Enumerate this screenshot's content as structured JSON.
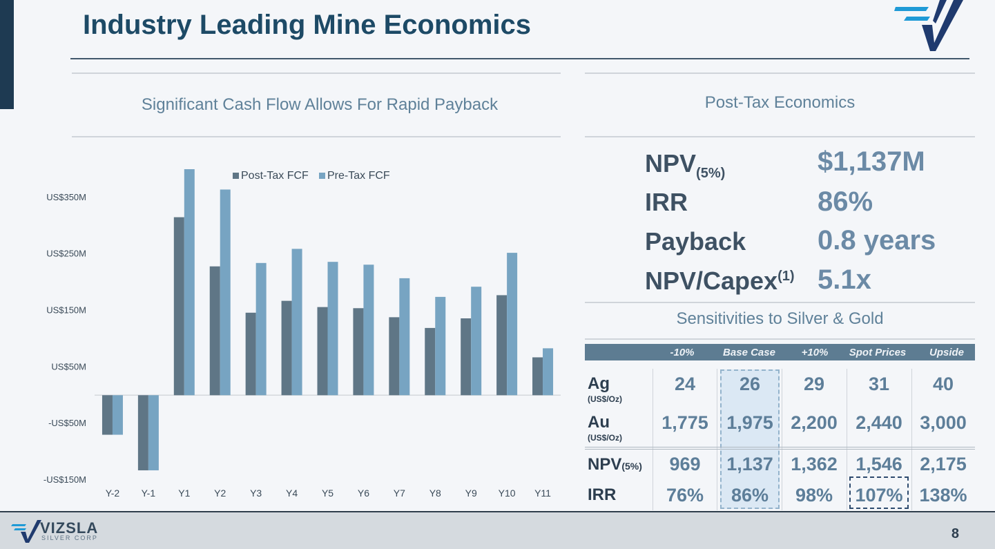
{
  "page": {
    "title": "Industry Leading Mine Economics",
    "page_number": "8"
  },
  "brand": {
    "name": "VIZSLA",
    "sub": "SILVER CORP"
  },
  "left_panel": {
    "subtitle": "Significant Cash Flow Allows For Rapid Payback"
  },
  "right_panel": {
    "subtitle": "Post-Tax Economics",
    "metrics": [
      {
        "label": "NPV",
        "label_suffix": "(5%)",
        "suffix_type": "sub",
        "value": "$1,137M"
      },
      {
        "label": "IRR",
        "label_suffix": "",
        "suffix_type": "",
        "value": "86%"
      },
      {
        "label": "Payback",
        "label_suffix": "",
        "suffix_type": "",
        "value": "0.8 years"
      },
      {
        "label": "NPV/Capex",
        "label_suffix": "(1)",
        "suffix_type": "sup",
        "value": "5.1x"
      }
    ],
    "sensitivities": {
      "title": "Sensitivities to Silver & Gold",
      "columns": [
        "-10%",
        "Base Case",
        "+10%",
        "Spot Prices",
        "Upside"
      ],
      "rows": [
        {
          "label": "Ag",
          "unit": "(US$/Oz)",
          "values": [
            "24",
            "26",
            "29",
            "31",
            "40"
          ]
        },
        {
          "label": "Au",
          "unit": "(US$/Oz)",
          "values": [
            "1,775",
            "1,975",
            "2,200",
            "2,440",
            "3,000"
          ]
        },
        {
          "label": "NPV",
          "label_suffix": "(5%)",
          "values": [
            "969",
            "1,137",
            "1,362",
            "1,546",
            "2,175"
          ]
        },
        {
          "label": "IRR",
          "values": [
            "76%",
            "86%",
            "98%",
            "107%",
            "138%"
          ]
        }
      ]
    }
  },
  "chart_data": {
    "type": "bar",
    "categories": [
      "Y-2",
      "Y-1",
      "Y1",
      "Y2",
      "Y3",
      "Y4",
      "Y5",
      "Y6",
      "Y7",
      "Y8",
      "Y9",
      "Y10",
      "Y11"
    ],
    "series": [
      {
        "name": "Post-Tax FCF",
        "color": "#5f7686",
        "values": [
          -70,
          -133,
          315,
          228,
          146,
          167,
          156,
          154,
          138,
          119,
          136,
          177,
          67
        ]
      },
      {
        "name": "Pre-Tax FCF",
        "color": "#77a4c2",
        "values": [
          -70,
          -133,
          400,
          364,
          234,
          259,
          236,
          231,
          207,
          174,
          192,
          252,
          83
        ]
      }
    ],
    "y_ticks": [
      350,
      250,
      150,
      50,
      -50,
      -150
    ],
    "y_tick_labels": [
      "US$350M",
      "US$250M",
      "US$150M",
      "US$50M",
      "-US$50M",
      "-US$150M"
    ],
    "ylim": [
      -150,
      400
    ],
    "grid": false,
    "legend_position": "top-center",
    "title": "",
    "xlabel": "",
    "ylabel": ""
  }
}
